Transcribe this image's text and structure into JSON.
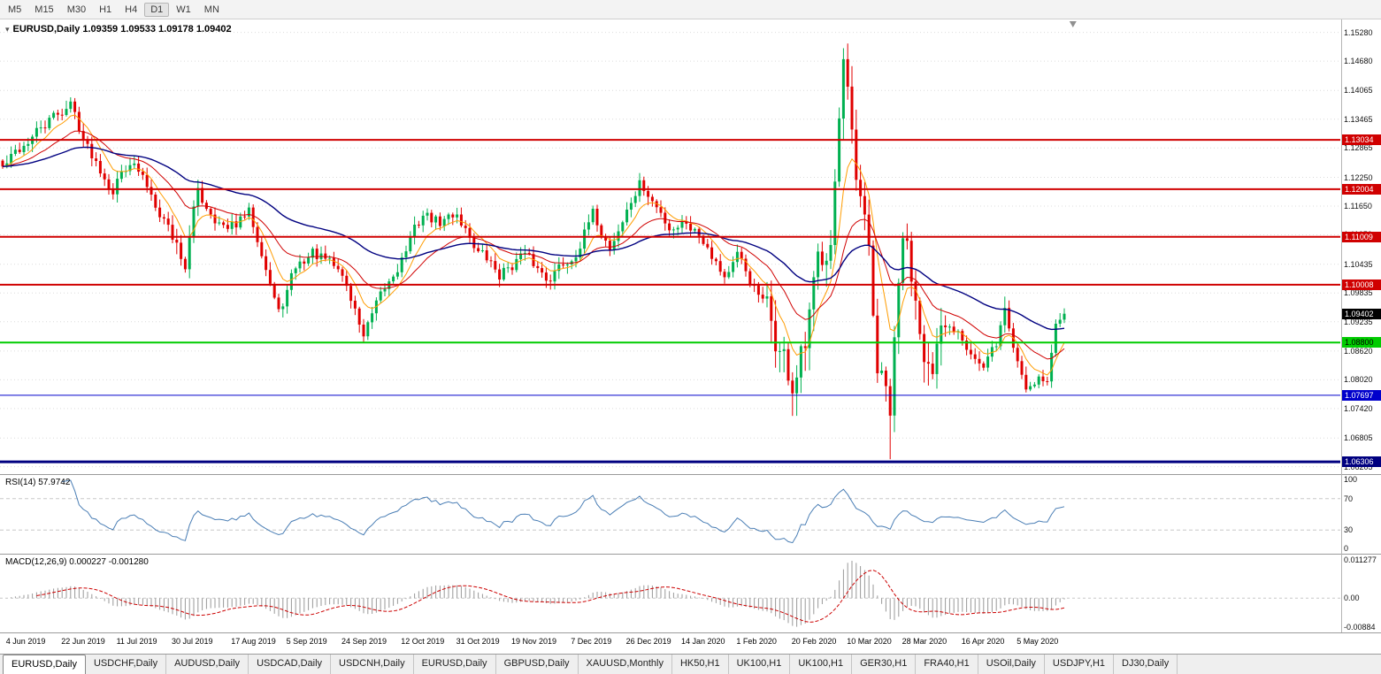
{
  "icons": {
    "dropdown": "▾"
  },
  "toolbar": {
    "timeframes": [
      "M5",
      "M15",
      "M30",
      "H1",
      "H4",
      "D1",
      "W1",
      "MN"
    ],
    "active": "D1"
  },
  "chart": {
    "title_line": "EURUSD,Daily 1.09359 1.09533 1.09178 1.09402",
    "symbol": "EURUSD",
    "period": "Daily",
    "open": "1.09359",
    "high": "1.09533",
    "low": "1.09178",
    "close": "1.09402"
  },
  "chart_data": {
    "type": "candlestick",
    "symbol": "EURUSD",
    "timeframe": "Daily",
    "candles_count": 251,
    "price_axis": {
      "min": 1.0605,
      "max": 1.1555,
      "ticks": [
        "1.15280",
        "1.14680",
        "1.14065",
        "1.13465",
        "1.12865",
        "1.12250",
        "1.11650",
        "1.11050",
        "1.10435",
        "1.09835",
        "1.09235",
        "1.08620",
        "1.08020",
        "1.07420",
        "1.06805",
        "1.06205"
      ]
    },
    "anchors": [
      [
        0,
        1.1245
      ],
      [
        6,
        1.1302
      ],
      [
        16,
        1.138
      ],
      [
        20,
        1.1288
      ],
      [
        26,
        1.1207
      ],
      [
        30,
        1.1266
      ],
      [
        38,
        1.1146
      ],
      [
        43,
        1.1048
      ],
      [
        46,
        1.1194
      ],
      [
        53,
        1.111
      ],
      [
        58,
        1.1148
      ],
      [
        61,
        1.108
      ],
      [
        65,
        1.0938
      ],
      [
        69,
        1.1035
      ],
      [
        73,
        1.1068
      ],
      [
        80,
        1.1022
      ],
      [
        85,
        1.0896
      ],
      [
        90,
        1.0985
      ],
      [
        93,
        1.104
      ],
      [
        99,
        1.1148
      ],
      [
        103,
        1.1128
      ],
      [
        107,
        1.1152
      ],
      [
        112,
        1.1072
      ],
      [
        117,
        1.1022
      ],
      [
        122,
        1.1062
      ],
      [
        128,
        1.1018
      ],
      [
        134,
        1.1058
      ],
      [
        139,
        1.1143
      ],
      [
        143,
        1.108
      ],
      [
        150,
        1.121
      ],
      [
        154,
        1.116
      ],
      [
        157,
        1.1122
      ],
      [
        161,
        1.1136
      ],
      [
        166,
        1.109
      ],
      [
        170,
        1.1022
      ],
      [
        173,
        1.1056
      ],
      [
        179,
        1.096
      ],
      [
        186,
        1.079
      ],
      [
        189,
        1.085
      ],
      [
        192,
        1.1026
      ],
      [
        195,
        1.1135
      ],
      [
        198,
        1.1446
      ],
      [
        201,
        1.1184
      ],
      [
        204,
        1.105
      ],
      [
        206,
        1.082
      ],
      [
        209,
        1.0727
      ],
      [
        212,
        1.11
      ],
      [
        216,
        1.095
      ],
      [
        219,
        1.08
      ],
      [
        222,
        1.089
      ],
      [
        225,
        1.0912
      ],
      [
        228,
        1.087
      ],
      [
        231,
        1.0822
      ],
      [
        234,
        1.0875
      ],
      [
        236,
        1.095
      ],
      [
        238,
        1.087
      ],
      [
        241,
        1.0788
      ],
      [
        244,
        1.0815
      ],
      [
        246,
        1.0802
      ],
      [
        248,
        1.0915
      ],
      [
        250,
        1.094
      ]
    ],
    "noise": {
      "seed": 42,
      "base": 0.0016,
      "vol_ranges": [
        {
          "from": 40,
          "to": 47,
          "amp": 0.0026
        },
        {
          "from": 180,
          "to": 222,
          "amp": 0.005
        }
      ]
    },
    "overrides": [
      {
        "idx": 43,
        "low": 1.1026
      },
      {
        "idx": 85,
        "low": 1.0879
      },
      {
        "idx": 198,
        "high": 1.1495
      },
      {
        "idx": 209,
        "low": 1.0636
      },
      {
        "idx": 236,
        "high": 1.0976
      }
    ],
    "hlines": [
      {
        "price": 1.13034,
        "label": "1.13034",
        "color": "#d00000",
        "text_color": "#ffffff",
        "width": 2
      },
      {
        "price": 1.12004,
        "label": "1.12004",
        "color": "#d00000",
        "text_color": "#ffffff",
        "width": 2
      },
      {
        "price": 1.11009,
        "label": "1.11009",
        "color": "#d00000",
        "text_color": "#ffffff",
        "width": 2
      },
      {
        "price": 1.10008,
        "label": "1.10008",
        "color": "#d00000",
        "text_color": "#ffffff",
        "width": 2
      },
      {
        "price": 1.088,
        "label": "1.08800",
        "color": "#00cc00",
        "text_color": "#000000",
        "width": 2
      },
      {
        "price": 1.07697,
        "label": "1.07697",
        "color": "#0000cc",
        "text_color": "#ffffff",
        "width": 1
      },
      {
        "price": 1.06306,
        "label": "1.06306",
        "color": "#000080",
        "text_color": "#ffffff",
        "width": 3
      }
    ],
    "current_price": {
      "value": 1.09402,
      "label": "1.09402",
      "bg": "#000000",
      "text_color": "#ffffff"
    },
    "moving_averages": [
      {
        "period": 8,
        "color": "#ff9c00",
        "width": 1
      },
      {
        "period": 21,
        "color": "#d00000",
        "width": 1
      },
      {
        "period": 55,
        "color": "#000080",
        "width": 1.4
      }
    ],
    "colors": {
      "up": "#00b050",
      "down": "#e00000",
      "grid": "#dcdcdc",
      "background": "#ffffff",
      "shift_marker": "#909090"
    },
    "x_labels": [
      {
        "idx": 1,
        "text": "4 Jun 2019"
      },
      {
        "idx": 14,
        "text": "22 Jun 2019"
      },
      {
        "idx": 27,
        "text": "11 Jul 2019"
      },
      {
        "idx": 40,
        "text": "30 Jul 2019"
      },
      {
        "idx": 54,
        "text": "17 Aug 2019"
      },
      {
        "idx": 67,
        "text": "5 Sep 2019"
      },
      {
        "idx": 80,
        "text": "24 Sep 2019"
      },
      {
        "idx": 94,
        "text": "12 Oct 2019"
      },
      {
        "idx": 107,
        "text": "31 Oct 2019"
      },
      {
        "idx": 120,
        "text": "19 Nov 2019"
      },
      {
        "idx": 134,
        "text": "7 Dec 2019"
      },
      {
        "idx": 147,
        "text": "26 Dec 2019"
      },
      {
        "idx": 160,
        "text": "14 Jan 2020"
      },
      {
        "idx": 173,
        "text": "1 Feb 2020"
      },
      {
        "idx": 186,
        "text": "20 Feb 2020"
      },
      {
        "idx": 199,
        "text": "10 Mar 2020"
      },
      {
        "idx": 212,
        "text": "28 Mar 2020"
      },
      {
        "idx": 226,
        "text": "16 Apr 2020"
      },
      {
        "idx": 239,
        "text": "5 May 2020"
      }
    ],
    "rsi": {
      "title": "RSI(14) 57.9742",
      "period": 14,
      "value": "57.9742",
      "levels": [
        {
          "v": 100,
          "t": "100"
        },
        {
          "v": 70,
          "t": "70"
        },
        {
          "v": 30,
          "t": "30"
        },
        {
          "v": 0,
          "t": "0"
        }
      ],
      "dashed_levels": [
        70,
        30
      ],
      "color": "#4a7eb5"
    },
    "macd": {
      "title": "MACD(12,26,9) 0.000227 -0.001280",
      "fast": 12,
      "slow": 26,
      "signal_period": 9,
      "values_text": [
        "0.000227",
        "-0.001280"
      ],
      "axis": [
        {
          "v": 0.011277,
          "t": "0.011277"
        },
        {
          "v": 0,
          "t": "0.00"
        },
        {
          "v": -0.00884,
          "t": "-0.00884"
        }
      ],
      "max": 0.011277,
      "min": -0.00884,
      "hist_color": "#999999",
      "signal_color": "#cc0000"
    }
  },
  "tabs": {
    "items": [
      {
        "label": "EURUSD,Daily",
        "active": true
      },
      {
        "label": "USDCHF,Daily",
        "active": false
      },
      {
        "label": "AUDUSD,Daily",
        "active": false
      },
      {
        "label": "USDCAD,Daily",
        "active": false
      },
      {
        "label": "USDCNH,Daily",
        "active": false
      },
      {
        "label": "EURUSD,Daily",
        "active": false
      },
      {
        "label": "GBPUSD,Daily",
        "active": false
      },
      {
        "label": "XAUUSD,Monthly",
        "active": false
      },
      {
        "label": "HK50,H1",
        "active": false
      },
      {
        "label": "UK100,H1",
        "active": false
      },
      {
        "label": "UK100,H1",
        "active": false
      },
      {
        "label": "GER30,H1",
        "active": false
      },
      {
        "label": "FRA40,H1",
        "active": false
      },
      {
        "label": "USOil,Daily",
        "active": false
      },
      {
        "label": "USDJPY,H1",
        "active": false
      },
      {
        "label": "DJ30,Daily",
        "active": false
      }
    ]
  }
}
